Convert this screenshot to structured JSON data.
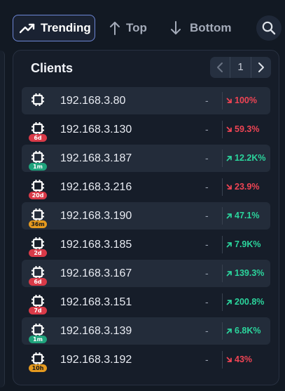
{
  "toolbar": {
    "tabs": [
      {
        "label": "Trending",
        "icon": "trending-up-icon",
        "active": true
      },
      {
        "label": "Top",
        "icon": "arrow-up-icon",
        "active": false
      },
      {
        "label": "Bottom",
        "icon": "arrow-down-icon",
        "active": false
      }
    ],
    "search_icon": "search-icon"
  },
  "panel": {
    "title": "Clients",
    "pager": {
      "current_page": "1"
    }
  },
  "colors": {
    "accent": "#6d86d6",
    "down": "#ef4454",
    "up": "#2bd49c",
    "badge_red": "#d93a48",
    "badge_green": "#1fa37c",
    "badge_orange": "#e59a1f"
  },
  "clients": [
    {
      "ip": "192.168.3.80",
      "badge": "",
      "badge_color": "",
      "value": "-",
      "change": "100%",
      "direction": "down"
    },
    {
      "ip": "192.168.3.130",
      "badge": "6d",
      "badge_color": "red",
      "value": "-",
      "change": "59.3%",
      "direction": "down"
    },
    {
      "ip": "192.168.3.187",
      "badge": "1m",
      "badge_color": "green",
      "value": "-",
      "change": "12.2K%",
      "direction": "up"
    },
    {
      "ip": "192.168.3.216",
      "badge": "20d",
      "badge_color": "red",
      "value": "-",
      "change": "23.9%",
      "direction": "down"
    },
    {
      "ip": "192.168.3.190",
      "badge": "36m",
      "badge_color": "orange",
      "value": "-",
      "change": "47.1%",
      "direction": "up"
    },
    {
      "ip": "192.168.3.185",
      "badge": "2d",
      "badge_color": "red",
      "value": "-",
      "change": "7.9K%",
      "direction": "up"
    },
    {
      "ip": "192.168.3.167",
      "badge": "6d",
      "badge_color": "red",
      "value": "-",
      "change": "139.3%",
      "direction": "up"
    },
    {
      "ip": "192.168.3.151",
      "badge": "7d",
      "badge_color": "red",
      "value": "-",
      "change": "200.8%",
      "direction": "up"
    },
    {
      "ip": "192.168.3.139",
      "badge": "1m",
      "badge_color": "green",
      "value": "-",
      "change": "6.8K%",
      "direction": "up"
    },
    {
      "ip": "192.168.3.192",
      "badge": "10h",
      "badge_color": "orange",
      "value": "-",
      "change": "43%",
      "direction": "down"
    }
  ]
}
